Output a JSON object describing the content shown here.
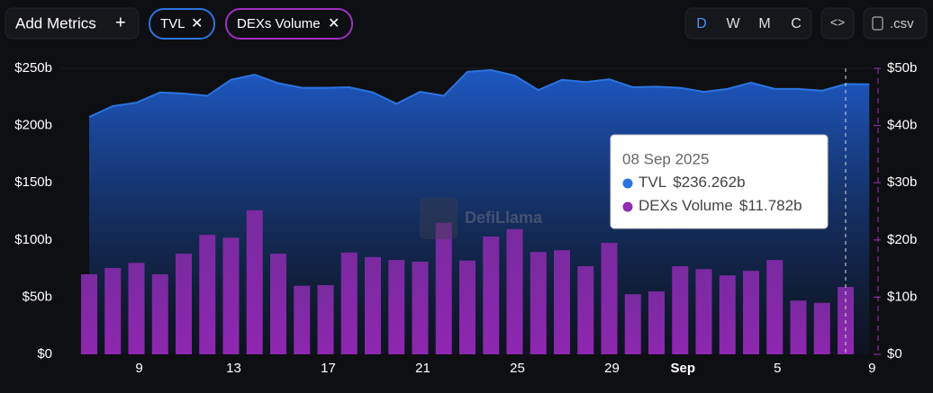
{
  "toolbar": {
    "add": "Add Metrics",
    "periods": [
      "D",
      "W",
      "M",
      "C"
    ],
    "csv": ".csv"
  },
  "watermark": "DefiLlama",
  "chart_data": {
    "type": "bar_line",
    "categories": [
      null,
      null,
      "9",
      null,
      null,
      null,
      "13",
      null,
      null,
      null,
      "17",
      null,
      null,
      null,
      "21",
      null,
      null,
      null,
      "25",
      null,
      null,
      null,
      "29",
      null,
      null,
      "Sep",
      null,
      null,
      null,
      "5",
      null,
      null,
      null,
      "9"
    ],
    "series": [
      {
        "name": "TVL",
        "color": "#2b74e0",
        "kind": "area",
        "values": [
          207.5,
          217,
          220,
          229,
          228,
          226,
          240,
          244.5,
          237,
          233,
          233,
          233.5,
          229,
          219,
          229.5,
          226,
          247,
          248.5,
          243.7,
          231,
          240,
          238,
          240.5,
          233.5,
          234,
          233,
          229.5,
          232,
          237.5,
          232,
          232,
          230.5,
          236.262,
          236
        ]
      },
      {
        "name": "DEXs Volume",
        "color": "#8e2fb0",
        "kind": "bar",
        "axis": "y2",
        "values": [
          14,
          15.1,
          16,
          14,
          17.6,
          20.9,
          20.4,
          25.2,
          17.6,
          12,
          12.1,
          17.8,
          17,
          16.5,
          16.2,
          23,
          16.4,
          20.6,
          21.9,
          17.9,
          18.2,
          15.4,
          19.5,
          10.5,
          11,
          15.4,
          14.9,
          13.8,
          14.6,
          16.5,
          9.4,
          9,
          11.782,
          null
        ]
      }
    ],
    "ylim": [
      0,
      250
    ],
    "yticks": [
      {
        "value": 0,
        "label": "$0"
      },
      {
        "value": 50,
        "label": "$50b"
      },
      {
        "value": 100,
        "label": "$100b"
      },
      {
        "value": 150,
        "label": "$150b"
      },
      {
        "value": 200,
        "label": "$200b"
      },
      {
        "value": 250,
        "label": "$250b"
      }
    ],
    "y2lim": [
      0,
      50
    ],
    "y2ticks": [
      {
        "value": 0,
        "label": "$0"
      },
      {
        "value": 10,
        "label": "$10b"
      },
      {
        "value": 20,
        "label": "$20b"
      },
      {
        "value": 30,
        "label": "$30b"
      },
      {
        "value": 40,
        "label": "$40b"
      },
      {
        "value": 50,
        "label": "$50b"
      }
    ],
    "tooltip": {
      "title": "08 Sep 2025",
      "labels": [
        "$236.262b",
        "$11.782b"
      ]
    }
  }
}
